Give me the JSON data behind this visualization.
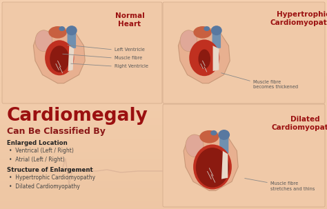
{
  "bg_color": "#f2c9a8",
  "title_line1": "Cardiomegaly",
  "title_line2": "Can Be Classified By",
  "title_color": "#9b1010",
  "section1_heading": "Enlarged Location",
  "section1_bullets": [
    "Ventrical (Left / Right)",
    "Atrial (Left / Right)"
  ],
  "section2_heading": "Structure of Enlargement",
  "section2_bullets": [
    "Hypertrophic Cardiomyopathy",
    "Dilated Cardiomyopathy"
  ],
  "heart1_title": "Normal\nHeart",
  "heart2_title": "Hypertrophic\nCardiomyopathy",
  "heart3_title": "Dilated\nCardiomyopathy",
  "heart1_labels": [
    "Left Ventricle",
    "Muscle fibre",
    "Right Ventricle"
  ],
  "heart2_label": "Muscle fibre\nbecomes thickened",
  "heart3_label": "Muscle fibre\nstretches and thins",
  "box_color": "#f0c9a8",
  "heart_outer": "#e8b090",
  "heart_outer_edge": "#c89878",
  "heart_red": "#c03020",
  "heart_dark_red": "#8b1a10",
  "heart_blue": "#5878a0",
  "heart_blue2": "#7090b0",
  "heart_pink": "#d89080",
  "heart_pink2": "#e0a898",
  "heart_orange": "#c86040",
  "heart_gray": "#d0c8c0",
  "heart_cream": "#e8d8c8",
  "label_color": "#555555",
  "heading_color": "#222222",
  "bullet_color": "#444444",
  "ecg_color": "#d0a890"
}
